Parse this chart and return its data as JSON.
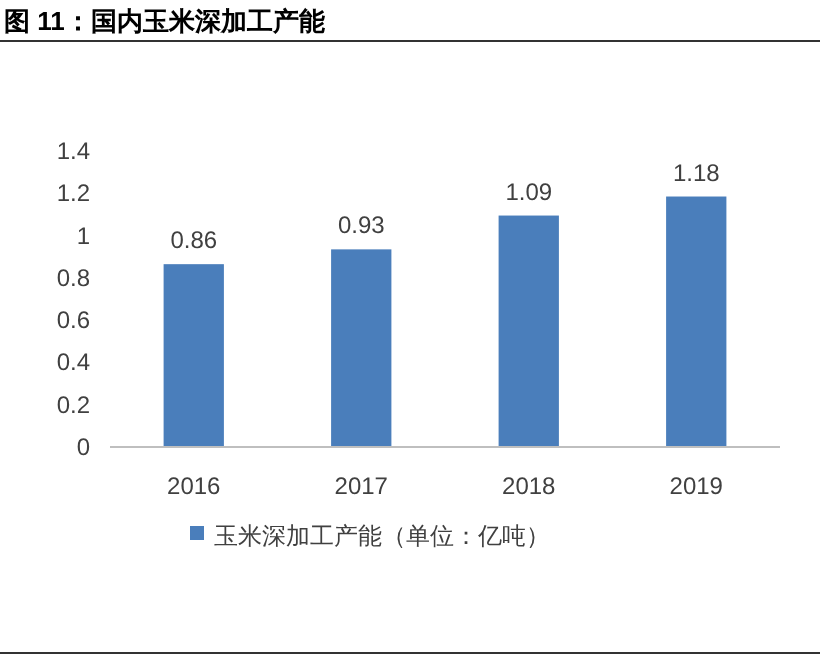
{
  "chart_data": {
    "type": "bar",
    "title": "图 11：国内玉米深加工产能",
    "categories": [
      "2016",
      "2017",
      "2018",
      "2019"
    ],
    "series": [
      {
        "name": "玉米深加工产能（单位：亿吨）",
        "color": "#4a7ebb",
        "values": [
          0.86,
          0.93,
          1.09,
          1.18
        ]
      }
    ],
    "ylim": [
      0,
      1.4
    ],
    "yticks": [
      0,
      0.2,
      0.4,
      0.6,
      0.8,
      1,
      1.2,
      1.4
    ],
    "data_labels": true,
    "legend": "bottom",
    "grid": false
  }
}
